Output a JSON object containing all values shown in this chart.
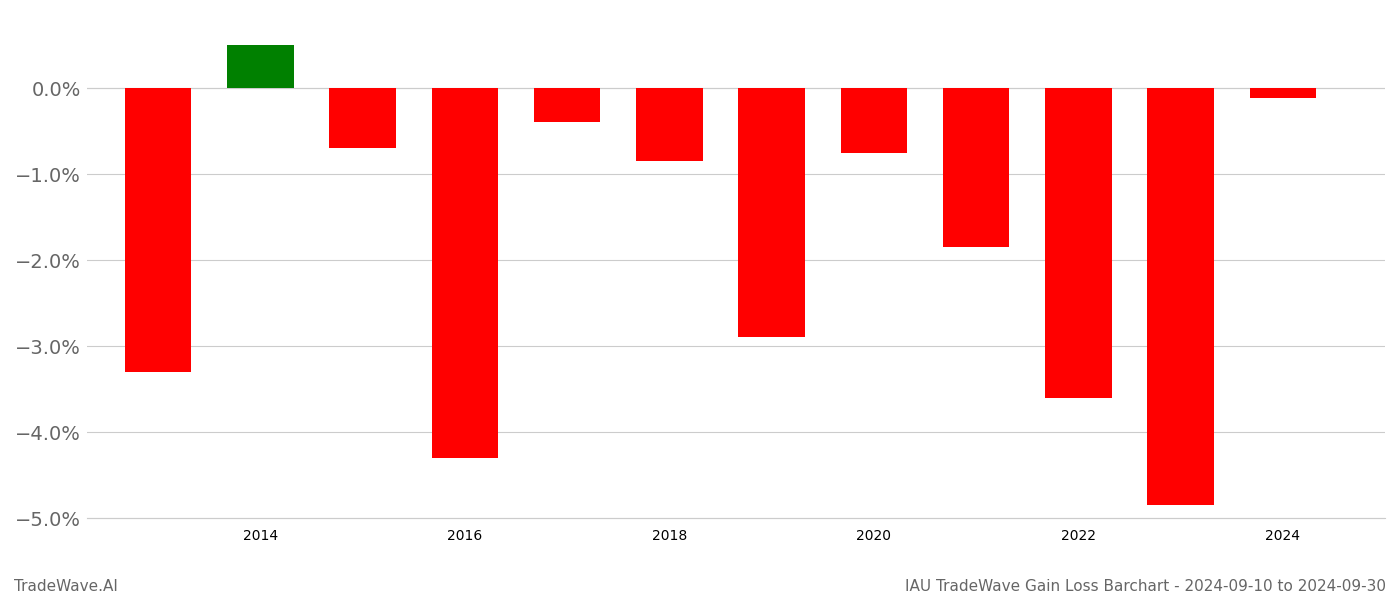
{
  "years": [
    2013,
    2014,
    2015,
    2016,
    2017,
    2018,
    2019,
    2020,
    2021,
    2022,
    2023,
    2024
  ],
  "values": [
    -3.3,
    0.5,
    -0.7,
    -4.3,
    -0.4,
    -0.85,
    -2.9,
    -0.75,
    -1.85,
    -3.6,
    -4.85,
    -0.12
  ],
  "bar_colors_pos": "#008000",
  "bar_colors_neg": "#ff0000",
  "ytick_labels": [
    "0.0%",
    "−1.0%",
    "−2.0%",
    "−3.0%",
    "−4.0%",
    "−5.0%"
  ],
  "ytick_values": [
    0.0,
    -1.0,
    -2.0,
    -3.0,
    -4.0,
    -5.0
  ],
  "ylim": [
    -5.5,
    0.85
  ],
  "footer_left": "TradeWave.AI",
  "footer_right": "IAU TradeWave Gain Loss Barchart - 2024-09-10 to 2024-09-30",
  "grid_color": "#cccccc",
  "text_color": "#666666",
  "background_color": "#ffffff",
  "bar_width": 0.65,
  "tick_fontsize": 14,
  "footer_fontsize": 11,
  "xlim": [
    2012.3,
    2025.0
  ]
}
